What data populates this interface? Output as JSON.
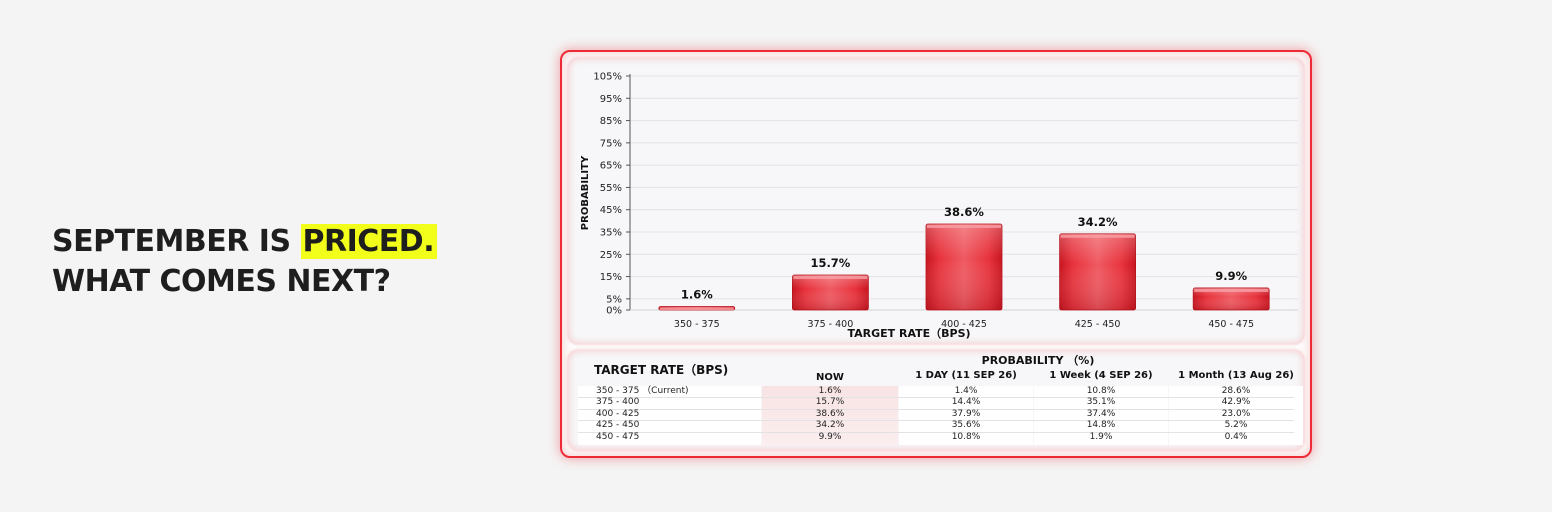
{
  "headline": {
    "line1_prefix": "SEPTEMBER IS",
    "line1_highlight": "PRICED.",
    "line2": "WHAT COMES NEXT?"
  },
  "colors": {
    "highlight": "#f2ff1a",
    "accent_red": "#ee2b35",
    "bar_red": "#e3222c"
  },
  "chart_data": {
    "type": "bar",
    "categories": [
      "350 - 375",
      "375 - 400",
      "400 - 425",
      "425 - 450",
      "450 - 475"
    ],
    "values": [
      1.6,
      15.7,
      38.6,
      34.2,
      9.9
    ],
    "value_labels": [
      "1.6%",
      "15.7%",
      "38.6%",
      "34.2%",
      "9.9%"
    ],
    "xlabel": "TARGET RATE（BPS)",
    "ylabel": "PROBABILITY",
    "yticks": [
      "0%",
      "5%",
      "15%",
      "25%",
      "35%",
      "45%",
      "55%",
      "65%",
      "75%",
      "85%",
      "95%",
      "105%"
    ],
    "ytick_values": [
      0,
      5,
      15,
      25,
      35,
      45,
      55,
      65,
      75,
      85,
      95,
      105
    ],
    "ylim": [
      0,
      105
    ],
    "grid": true
  },
  "table": {
    "row_header": "TARGET RATE（BPS)",
    "group_header": "PROBABILITY （%)",
    "columns": [
      "NOW",
      "1 DAY (11 SEP 26)",
      "1 Week (4 SEP 26)",
      "1 Month (13 Aug 26)"
    ],
    "rows": [
      {
        "label": "350 - 375 （Current)",
        "values": [
          "1.6%",
          "1.4%",
          "10.8%",
          "28.6%"
        ]
      },
      {
        "label": "375 - 400",
        "values": [
          "15.7%",
          "14.4%",
          "35.1%",
          "42.9%"
        ]
      },
      {
        "label": "400 - 425",
        "values": [
          "38.6%",
          "37.9%",
          "37.4%",
          "23.0%"
        ]
      },
      {
        "label": "425 - 450",
        "values": [
          "34.2%",
          "35.6%",
          "14.8%",
          "5.2%"
        ]
      },
      {
        "label": "450 - 475",
        "values": [
          "9.9%",
          "10.8%",
          "1.9%",
          "0.4%"
        ]
      }
    ]
  }
}
